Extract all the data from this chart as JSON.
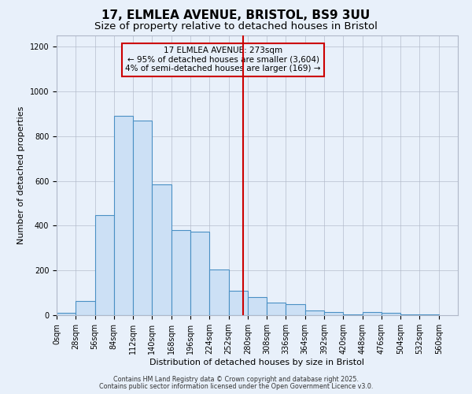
{
  "title_line1": "17, ELMLEA AVENUE, BRISTOL, BS9 3UU",
  "title_line2": "Size of property relative to detached houses in Bristol",
  "xlabel": "Distribution of detached houses by size in Bristol",
  "ylabel": "Number of detached properties",
  "bin_starts": [
    0,
    28,
    56,
    84,
    112,
    140,
    168,
    196,
    224,
    252,
    280,
    308,
    336,
    364,
    392,
    420,
    448,
    476,
    504,
    532
  ],
  "bin_width": 28,
  "counts": [
    10,
    65,
    448,
    890,
    870,
    585,
    380,
    375,
    205,
    110,
    80,
    55,
    50,
    20,
    15,
    5,
    15,
    12,
    2,
    2
  ],
  "bar_facecolor": "#cce0f5",
  "bar_edgecolor": "#4a90c4",
  "vline_x": 273,
  "vline_color": "#cc0000",
  "annotation_line1": "17 ELMLEA AVENUE: 273sqm",
  "annotation_line2": "← 95% of detached houses are smaller (3,604)",
  "annotation_line3": "4% of semi-detached houses are larger (169) →",
  "ylim": [
    0,
    1250
  ],
  "yticks": [
    0,
    200,
    400,
    600,
    800,
    1000,
    1200
  ],
  "xlim_min": 0,
  "xlim_max": 588,
  "background_color": "#e8f0fa",
  "grid_color": "#b0b8c8",
  "footer_line1": "Contains HM Land Registry data © Crown copyright and database right 2025.",
  "footer_line2": "Contains public sector information licensed under the Open Government Licence v3.0.",
  "title_fontsize": 11,
  "subtitle_fontsize": 9.5,
  "axis_label_fontsize": 8,
  "tick_fontsize": 7,
  "annotation_fontsize": 7.5
}
